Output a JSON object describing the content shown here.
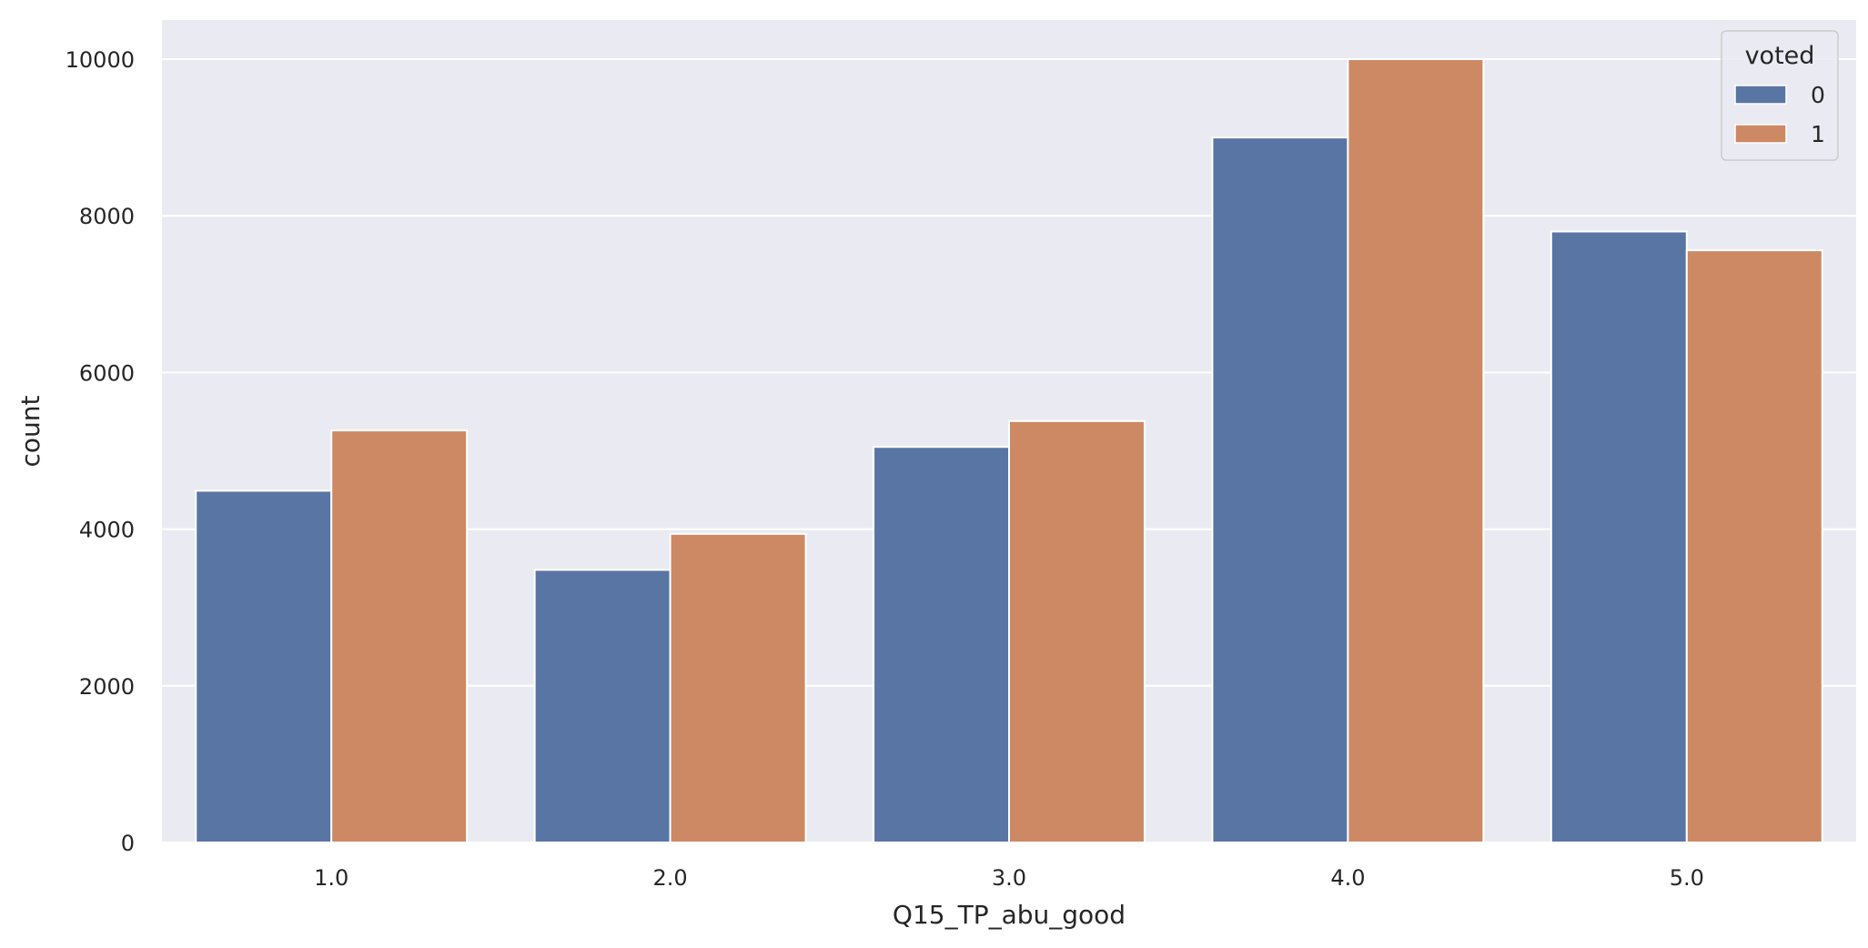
{
  "chart_data": {
    "type": "bar",
    "categories": [
      "1.0",
      "2.0",
      "3.0",
      "4.0",
      "5.0"
    ],
    "series": [
      {
        "name": "0",
        "values": [
          4490,
          3480,
          5050,
          9000,
          7800
        ],
        "color": "#5975a4"
      },
      {
        "name": "1",
        "values": [
          5260,
          3940,
          5380,
          10000,
          7560
        ],
        "color": "#cc8963"
      }
    ],
    "xlabel": "Q15_TP_abu_good",
    "ylabel": "count",
    "ylim": [
      0,
      10500
    ],
    "yticks": [
      0,
      2000,
      4000,
      6000,
      8000,
      10000
    ],
    "grid": true,
    "legend": {
      "title": "voted",
      "placement": "top-right"
    },
    "background": "#eaeaf2"
  }
}
